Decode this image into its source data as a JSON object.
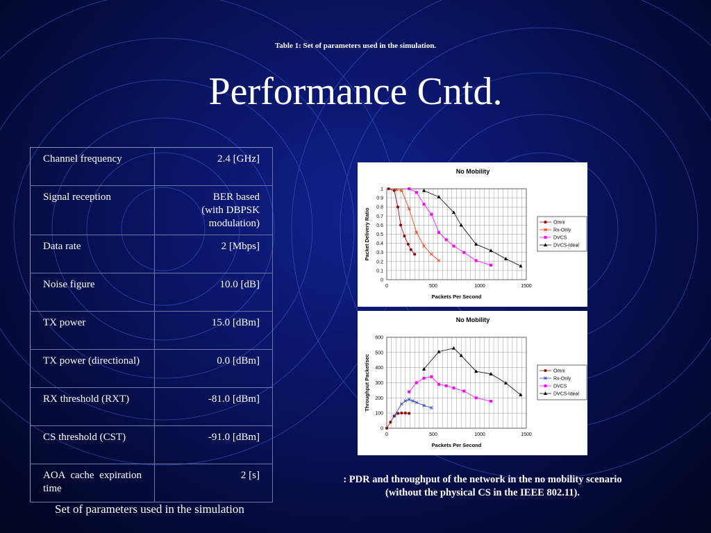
{
  "slide": {
    "caption_top": "Table 1: Set of parameters used in the simulation.",
    "title": "Performance Cntd.",
    "table_caption": "Set of parameters used in the simulation",
    "chart_caption_line1": ": PDR and throughput of the network in the no mobility scenario",
    "chart_caption_line2": "(without the physical CS in the IEEE 802.11)."
  },
  "params": [
    {
      "name": "Channel frequency",
      "value": "2.4 [GHz]"
    },
    {
      "name": "Signal reception",
      "value": "BER based (with DBPSK modulation)"
    },
    {
      "name": "Data rate",
      "value": "2 [Mbps]"
    },
    {
      "name": "Noise figure",
      "value": "10.0 [dB]"
    },
    {
      "name": "TX power",
      "value": "15.0 [dBm]"
    },
    {
      "name": "TX power (directional)",
      "value": "0.0 [dBm]"
    },
    {
      "name": "RX threshold (RXT)",
      "value": "-81.0 [dBm]"
    },
    {
      "name": "CS threshold (CST)",
      "value": "-91.0 [dBm]"
    },
    {
      "name": "AOA cache expiration time",
      "value": "2 [s]"
    }
  ],
  "chart_data": [
    {
      "type": "line",
      "title": "No Mobility",
      "xlabel": "Packets Per Second",
      "ylabel": "Packet Delivery Ratio",
      "xlim": [
        0,
        1500
      ],
      "ylim": [
        0,
        1
      ],
      "xticks": [
        0,
        500,
        1000,
        1500
      ],
      "yticks": [
        0,
        0.1,
        0.2,
        0.3,
        0.4,
        0.5,
        0.6,
        0.7,
        0.8,
        0.9,
        1
      ],
      "grid": true,
      "legend": "right",
      "series": [
        {
          "name": "Omni",
          "color": "#8b0000",
          "marker": "circle",
          "x": [
            20,
            80,
            120,
            150,
            190,
            230,
            260,
            300
          ],
          "y": [
            1.0,
            0.98,
            0.8,
            0.6,
            0.48,
            0.39,
            0.33,
            0.28
          ]
        },
        {
          "name": "Rx-Only",
          "color": "#ff2a00",
          "marker": "x",
          "x": [
            100,
            160,
            240,
            320,
            400,
            480,
            560
          ],
          "y": [
            0.99,
            0.98,
            0.78,
            0.52,
            0.37,
            0.28,
            0.21
          ]
        },
        {
          "name": "DVCS",
          "color": "#ff00ff",
          "marker": "square",
          "x": [
            240,
            320,
            400,
            480,
            560,
            640,
            720,
            830,
            960,
            1120
          ],
          "y": [
            1.0,
            0.96,
            0.83,
            0.72,
            0.52,
            0.44,
            0.37,
            0.3,
            0.21,
            0.16
          ]
        },
        {
          "name": "DVCS-Ideal",
          "color": "#000000",
          "marker": "triangle",
          "x": [
            400,
            560,
            720,
            800,
            960,
            1120,
            1280,
            1440
          ],
          "y": [
            0.98,
            0.91,
            0.74,
            0.6,
            0.39,
            0.32,
            0.23,
            0.15
          ]
        }
      ]
    },
    {
      "type": "line",
      "title": "No Mobility",
      "xlabel": "Packets Per Second",
      "ylabel": "Throughput Packet/sec",
      "xlim": [
        0,
        1500
      ],
      "ylim": [
        0,
        600
      ],
      "xticks": [
        0,
        500,
        1000,
        1500
      ],
      "yticks": [
        0,
        100,
        200,
        300,
        400,
        500,
        600
      ],
      "grid": true,
      "legend": "right",
      "series": [
        {
          "name": "Omni",
          "color": "#8b0000",
          "marker": "circle",
          "x": [
            0,
            40,
            80,
            120,
            160,
            200,
            240
          ],
          "y": [
            0,
            40,
            80,
            98,
            100,
            100,
            98
          ]
        },
        {
          "name": "Rx-Only",
          "color": "#2233dd",
          "marker": "x",
          "x": [
            80,
            160,
            200,
            240,
            280,
            320,
            400,
            480
          ],
          "y": [
            80,
            160,
            180,
            190,
            180,
            170,
            150,
            135
          ]
        },
        {
          "name": "DVCS",
          "color": "#ff00ff",
          "marker": "square",
          "x": [
            240,
            320,
            400,
            480,
            560,
            640,
            720,
            830,
            960,
            1120
          ],
          "y": [
            240,
            300,
            330,
            340,
            290,
            280,
            265,
            245,
            200,
            178
          ]
        },
        {
          "name": "DVCS-Ideal",
          "color": "#000000",
          "marker": "triangle",
          "x": [
            400,
            560,
            720,
            800,
            960,
            1120,
            1280,
            1440
          ],
          "y": [
            390,
            505,
            528,
            480,
            375,
            358,
            298,
            220
          ]
        }
      ]
    }
  ]
}
